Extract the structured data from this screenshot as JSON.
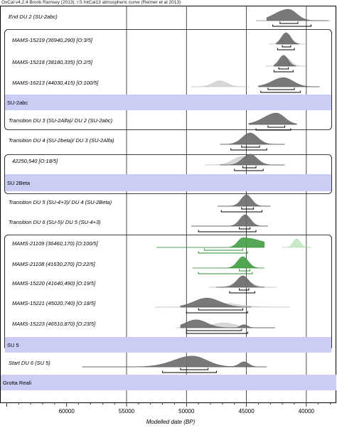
{
  "header": "OxCal v4.2.4 Bronk Ramsey (2013); r:5 IntCal13 atmospheric curve (Reimer et al 2013)",
  "chart_data": {
    "type": "oxcal-multiplot",
    "xlabel": "Modelled date (BP)",
    "x_reversed": true,
    "xlim": [
      65500,
      37500
    ],
    "ticks": [
      60000,
      55000,
      50000,
      45000,
      40000
    ],
    "tick_labels": [
      "60000",
      "55000",
      "50000",
      "45000",
      "40000"
    ],
    "gridlines": [
      55000,
      50000,
      45000,
      40000
    ],
    "colors": {
      "posterior": "#6e6e6e",
      "prior": "#d4d4d4",
      "highlight_posterior": "#46a046",
      "highlight_prior": "#c4e6c4",
      "phase_band": "#cbcdf4",
      "highlight_bar": "#2e8b2e"
    },
    "phase_bands": [
      {
        "label": "SU-2abc"
      },
      {
        "label": "SU 2Beta"
      },
      {
        "label": "SU 5"
      },
      {
        "label": "Grotta Reali"
      }
    ],
    "rows": [
      {
        "label": "End DU 2 (SU-2abc)",
        "post": {
          "mu": 41500,
          "sigma": 700,
          "skew": 1.6,
          "amp": 1.0
        },
        "prior": null,
        "range": [
          43300,
          38200
        ],
        "r68": [
          42200,
          40700
        ],
        "r95": [
          42800,
          39600
        ],
        "line": [
          44200,
          38000
        ]
      },
      {
        "label": "MAMS-15219 (36940,290) [O:3/5]",
        "post": {
          "mu": 41700,
          "sigma": 380,
          "skew": 1.0,
          "amp": 1.0
        },
        "prior": {
          "mu": 41600,
          "sigma": 380,
          "amp": 1.0
        },
        "range": [
          42500,
          40600
        ],
        "r68": [
          42000,
          41300
        ],
        "r95": [
          42400,
          41000
        ],
        "line": null
      },
      {
        "label": "MAMS-15218 (38180,335) [O:2/5]",
        "post": {
          "mu": 41900,
          "sigma": 380,
          "skew": 1.0,
          "amp": 0.95
        },
        "prior": {
          "mu": 41700,
          "sigma": 420,
          "amp": 0.8
        },
        "range": [
          42700,
          40900
        ],
        "r68": [
          42300,
          41500
        ],
        "r95": [
          42700,
          41100
        ],
        "line": null
      },
      {
        "label": "MAMS-16213 (44030,415) [O:100/5]",
        "post": {
          "mu": 41900,
          "sigma": 800,
          "skew": 1.2,
          "amp": 0.8
        },
        "prior": {
          "mu": 47200,
          "sigma": 600,
          "amp": 0.55
        },
        "range": [
          44000,
          38900
        ],
        "r68": [
          43200,
          41000
        ],
        "r95": [
          43800,
          40500
        ],
        "line": null
      },
      {
        "label": "Transition DU 3 (SU-2Alfa)/ DU 2 (SU-2abc)",
        "post": {
          "mu": 42500,
          "sigma": 700,
          "skew": 1.5,
          "amp": 1.0
        },
        "prior": null,
        "range": [
          44800,
          40800
        ],
        "r68": [
          43200,
          41800
        ],
        "r95": [
          44200,
          41300
        ],
        "line": null
      },
      {
        "label": "Transition DU 4 (SU-2beta)/ DU 3 (SU-2Alfa)",
        "post": {
          "mu": 44700,
          "sigma": 650,
          "skew": 1.0,
          "amp": 1.0
        },
        "prior": null,
        "range": [
          47200,
          41800
        ],
        "r68": [
          45400,
          43900
        ],
        "r95": [
          46300,
          43300
        ],
        "line": null
      },
      {
        "label": "42250,540 [O:18/5]",
        "post": {
          "mu": 44700,
          "sigma": 600,
          "skew": 1.0,
          "amp": 0.95
        },
        "prior": {
          "mu": 45300,
          "sigma": 800,
          "amp": 0.8
        },
        "range": [
          47200,
          41800
        ],
        "r68": [
          45300,
          44200
        ],
        "r95": [
          46000,
          43600
        ],
        "line": null
      },
      {
        "label": "Transition DU 5 (SU-4+3)/ DU 4 (SU-2Beta)",
        "post": {
          "mu": 45000,
          "sigma": 450,
          "skew": 1.0,
          "amp": 1.0
        },
        "prior": null,
        "range": [
          47400,
          43000
        ],
        "r68": [
          45400,
          44400
        ],
        "r95": [
          47100,
          43700
        ],
        "line": null
      },
      {
        "label": "Transition DU 6 (SU-5)/ DU 5 (SU-4+3)",
        "post": {
          "mu": 45100,
          "sigma": 450,
          "skew": 1.0,
          "amp": 1.0
        },
        "prior": null,
        "range": [
          49600,
          43200
        ],
        "r68": [
          45600,
          44700
        ],
        "r95": [
          49000,
          44200
        ],
        "line": null
      },
      {
        "label": "MAMS-21109 (36460,170) [O:100/5]",
        "post": {
          "mu": 45300,
          "sigma": 1700,
          "skew": 0.25,
          "amp": 0.85
        },
        "prior": {
          "mu": 40800,
          "sigma": 300,
          "amp": 0.8
        },
        "range": [
          52500,
          43500
        ],
        "r68": [
          48500,
          45300
        ],
        "r95": [
          49000,
          44900
        ],
        "line": null,
        "highlight": true
      },
      {
        "label": "MAMS-21108 (41630,270) [O:22/5]",
        "post": {
          "mu": 45300,
          "sigma": 450,
          "skew": 1.0,
          "amp": 1.0
        },
        "prior": {
          "mu": 45200,
          "sigma": 420,
          "amp": 0.95
        },
        "range": [
          49500,
          43500
        ],
        "r68": [
          45600,
          44700
        ],
        "r95": [
          49000,
          44500
        ],
        "line": null,
        "highlight": true
      },
      {
        "label": "MAMS-15220 (41640,490) [O:19/5]",
        "post": {
          "mu": 45300,
          "sigma": 500,
          "skew": 1.0,
          "amp": 1.0
        },
        "prior": {
          "mu": 45300,
          "sigma": 700,
          "amp": 0.7
        },
        "range": [
          47500,
          43500
        ],
        "r68": [
          45600,
          44800
        ],
        "r95": [
          46400,
          44300
        ],
        "line": null
      },
      {
        "label": "MAMS-15221 (45020,740) [O:18/5]",
        "post": {
          "mu": 48300,
          "sigma": 1100,
          "skew": 1.0,
          "amp": 0.8
        },
        "prior": {
          "mu": 47000,
          "sigma": 1400,
          "amp": 0.35
        },
        "range": [
          50500,
          44600
        ],
        "r68": [
          49000,
          45300
        ],
        "r95": [
          50000,
          44900
        ],
        "line": null
      },
      {
        "label": "MAMS-15223 (46510,870) [O:23/5]",
        "post": {
          "mu": 49200,
          "sigma": 900,
          "skew": 1.0,
          "amp": 0.7
        },
        "prior": {
          "mu": 46900,
          "sigma": 1000,
          "amp": 0.45
        },
        "range": [
          50500,
          42600
        ],
        "r68": [
          50000,
          45400
        ],
        "r95": [
          50000,
          44900
        ],
        "line": null,
        "extra_peak": {
          "mu": 45200,
          "sigma": 300,
          "amp": 0.3
        }
      },
      {
        "label": "Start DU 6 (SU 5)",
        "post": {
          "mu": 49500,
          "sigma": 1200,
          "skew": 1.3,
          "amp": 0.95
        },
        "prior": null,
        "range": [
          58700,
          43300
        ],
        "r68": [
          50500,
          48200
        ],
        "r95": [
          52000,
          47500
        ],
        "line": [
          58700,
          43300
        ],
        "extra_peak": {
          "mu": 45200,
          "sigma": 400,
          "amp": 0.5
        }
      }
    ]
  }
}
